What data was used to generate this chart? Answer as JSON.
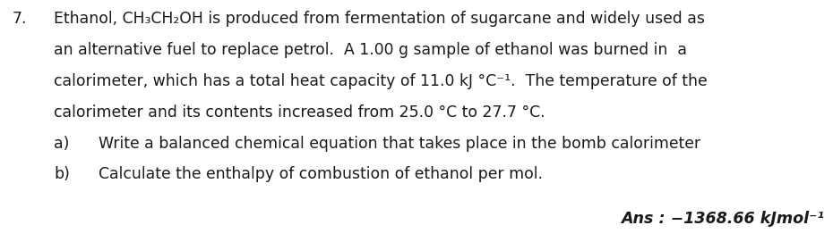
{
  "background_color": "#ffffff",
  "line1": "Ethanol, CH₃CH₂OH is produced from fermentation of sugarcane and widely used as",
  "line2": "an alternative fuel to replace petrol.  A 1.00 g sample of ethanol was burned in  a",
  "line3": "calorimeter, which has a total heat capacity of 11.0 kJ °C⁻¹.  The temperature of the",
  "line4": "calorimeter and its contents increased from 25.0 °C to 27.7 °C.",
  "sub_a_label": "a)",
  "sub_a_text": "Write a balanced chemical equation that takes place in the bomb calorimeter",
  "sub_b_label": "b)",
  "sub_b_text": "Calculate the enthalpy of combustion of ethanol per mol.",
  "ans_text": "Ans : −1368.66 kJmol⁻¹",
  "qnum": "7.",
  "font_size": 12.4,
  "ans_font_size": 12.6,
  "text_color": "#1a1a1a",
  "font_family": "Arial"
}
